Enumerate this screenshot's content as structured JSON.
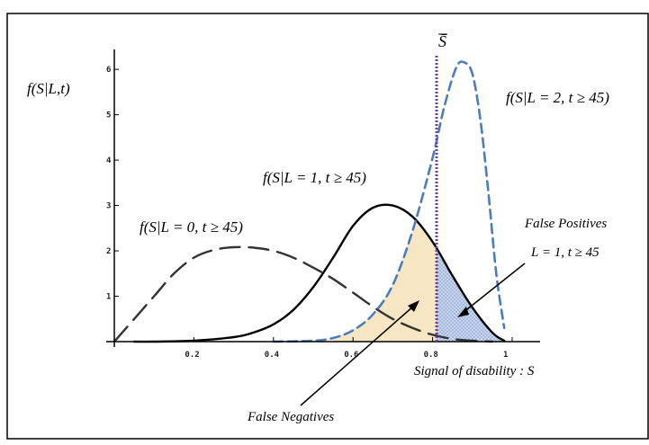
{
  "chart_data": {
    "type": "line",
    "title": "",
    "ylabel": "f(S|L,t)",
    "xlabel": "Signal of disability : S",
    "xlim": [
      0,
      1
    ],
    "ylim": [
      0,
      6.3
    ],
    "x_ticks": [
      "0.2",
      "0.4",
      "0.6",
      "0.8",
      "1"
    ],
    "y_ticks": [
      "1",
      "2",
      "3",
      "4",
      "5",
      "6"
    ],
    "grid": false,
    "threshold": {
      "label": "S̄",
      "x": 0.81
    },
    "series": [
      {
        "name": "f(S|L=0, t≥45)",
        "style": "long-dash",
        "color": "#333333",
        "x": [
          0.0,
          0.05,
          0.1,
          0.15,
          0.2,
          0.25,
          0.3,
          0.35,
          0.4,
          0.45,
          0.5,
          0.55,
          0.6,
          0.65,
          0.7,
          0.75,
          0.8,
          0.85,
          0.9,
          0.95
        ],
        "y": [
          0.0,
          0.5,
          1.0,
          1.5,
          1.85,
          2.02,
          2.08,
          2.07,
          2.0,
          1.85,
          1.63,
          1.38,
          1.08,
          0.77,
          0.5,
          0.3,
          0.15,
          0.06,
          0.02,
          0.0
        ]
      },
      {
        "name": "f(S|L=1, t≥45)",
        "style": "solid",
        "color": "#000000",
        "x": [
          0.05,
          0.1,
          0.2,
          0.3,
          0.35,
          0.4,
          0.45,
          0.5,
          0.55,
          0.6,
          0.65,
          0.7,
          0.75,
          0.8,
          0.85,
          0.9,
          0.95,
          0.98
        ],
        "y": [
          0.0,
          0.0,
          0.02,
          0.1,
          0.2,
          0.38,
          0.7,
          1.2,
          1.85,
          2.55,
          2.95,
          3.0,
          2.75,
          2.2,
          1.45,
          0.75,
          0.2,
          0.02
        ]
      },
      {
        "name": "f(S|L=2, t≥45)",
        "style": "short-dash",
        "color": "#4a7ebb",
        "x": [
          0.4,
          0.5,
          0.55,
          0.6,
          0.65,
          0.7,
          0.75,
          0.8,
          0.83,
          0.86,
          0.88,
          0.9,
          0.92,
          0.94,
          0.96,
          0.98
        ],
        "y": [
          0.0,
          0.02,
          0.08,
          0.25,
          0.6,
          1.25,
          2.45,
          4.05,
          5.2,
          6.05,
          6.15,
          5.9,
          4.9,
          3.3,
          1.5,
          0.3
        ]
      }
    ],
    "labels": {
      "l0": "f(S|L = 0, t ≥ 45)",
      "l1": "f(S|L = 1, t ≥ 45)",
      "l2": "f(S|L = 2, t ≥ 45)",
      "false_positives": "False Positives",
      "false_positives_cond": "L = 1, t ≥ 45",
      "false_negatives": "False Negatives"
    },
    "colors": {
      "false_negative_fill": "#f6e6c4",
      "false_positive_fill": "#c9d6ee"
    }
  }
}
